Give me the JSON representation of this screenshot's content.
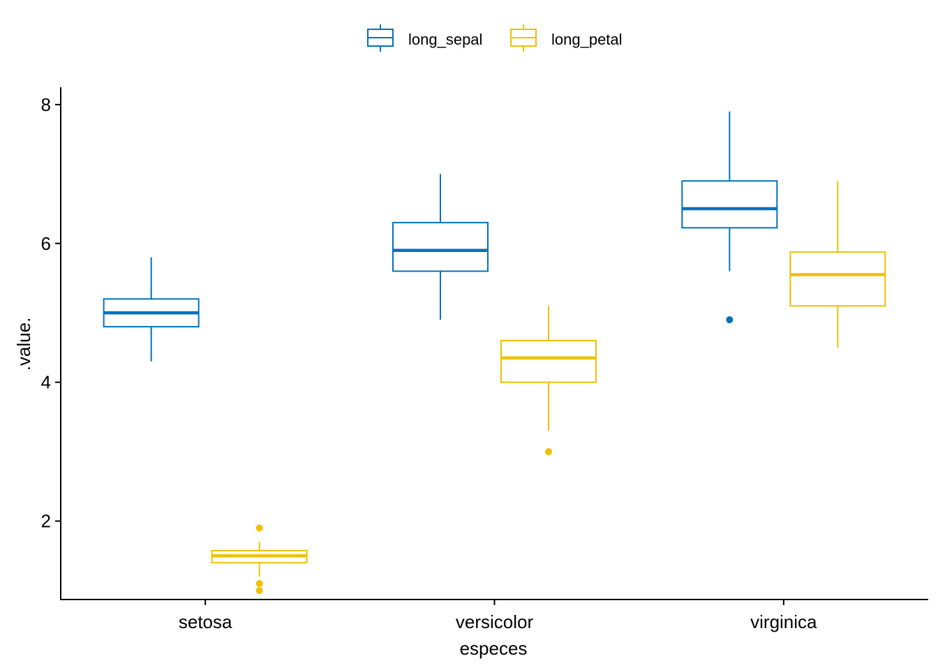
{
  "chart_data": {
    "type": "boxplot",
    "title": "",
    "xlabel": "especes",
    "ylabel": ".value.",
    "categories": [
      "setosa",
      "versicolor",
      "virginica"
    ],
    "ylim": [
      0.87,
      8.25
    ],
    "yticks": [
      2,
      4,
      6,
      8
    ],
    "grid": false,
    "legend_position": "top",
    "series": [
      {
        "name": "long_sepal",
        "color": "#0072BD",
        "boxes": [
          {
            "category": "setosa",
            "whisker_low": 4.3,
            "q1": 4.8,
            "median": 5.0,
            "q3": 5.2,
            "whisker_high": 5.8,
            "outliers": []
          },
          {
            "category": "versicolor",
            "whisker_low": 4.9,
            "q1": 5.6,
            "median": 5.9,
            "q3": 6.3,
            "whisker_high": 7.0,
            "outliers": []
          },
          {
            "category": "virginica",
            "whisker_low": 5.6,
            "q1": 6.225,
            "median": 6.5,
            "q3": 6.9,
            "whisker_high": 7.9,
            "outliers": [
              4.9
            ]
          }
        ]
      },
      {
        "name": "long_petal",
        "color": "#EFC000",
        "boxes": [
          {
            "category": "setosa",
            "whisker_low": 1.2,
            "q1": 1.4,
            "median": 1.5,
            "q3": 1.575,
            "whisker_high": 1.7,
            "outliers": [
              1.9,
              1.1,
              1.0
            ]
          },
          {
            "category": "versicolor",
            "whisker_low": 3.3,
            "q1": 4.0,
            "median": 4.35,
            "q3": 4.6,
            "whisker_high": 5.1,
            "outliers": [
              3.0
            ]
          },
          {
            "category": "virginica",
            "whisker_low": 4.5,
            "q1": 5.1,
            "median": 5.55,
            "q3": 5.875,
            "whisker_high": 6.9,
            "outliers": []
          }
        ]
      }
    ]
  }
}
